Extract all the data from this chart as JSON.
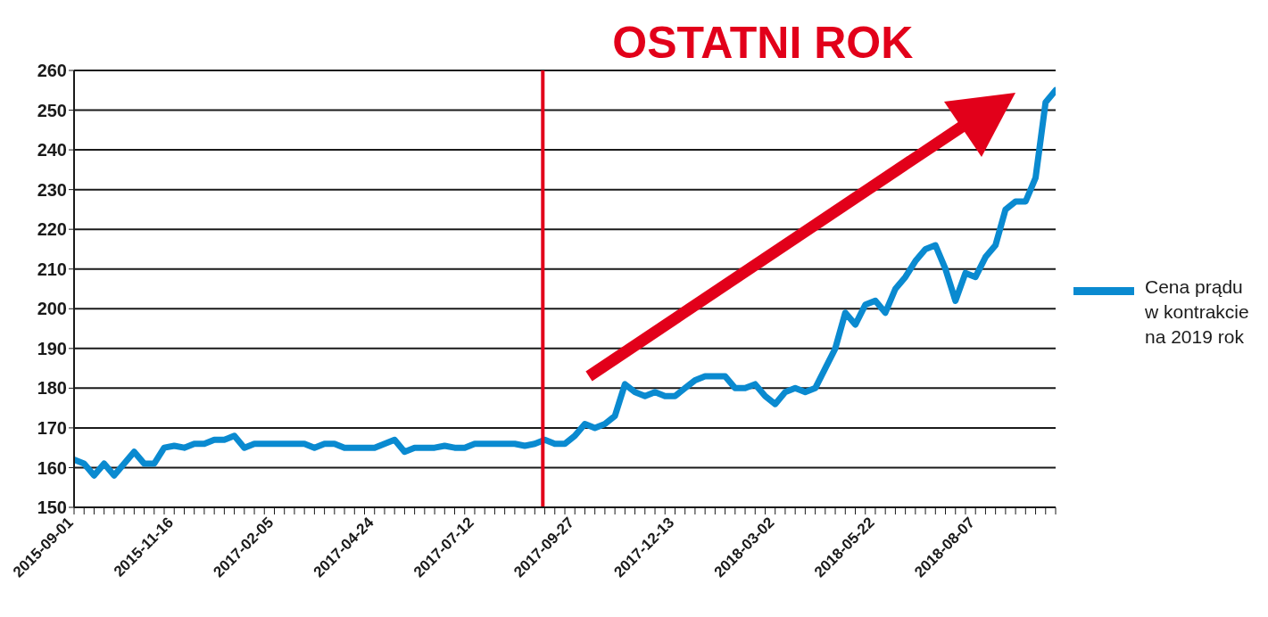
{
  "chart_data": {
    "type": "line",
    "categories": [
      "2015-09-01",
      null,
      null,
      null,
      null,
      null,
      null,
      null,
      null,
      null,
      "2015-11-16",
      null,
      null,
      null,
      null,
      null,
      null,
      null,
      null,
      null,
      "2017-02-05",
      null,
      null,
      null,
      null,
      null,
      null,
      null,
      null,
      null,
      "2017-04-24",
      null,
      null,
      null,
      null,
      null,
      null,
      null,
      null,
      null,
      "2017-07-12",
      null,
      null,
      null,
      null,
      null,
      null,
      null,
      null,
      null,
      "2017-09-27",
      null,
      null,
      null,
      null,
      null,
      null,
      null,
      null,
      null,
      "2017-12-13",
      null,
      null,
      null,
      null,
      null,
      null,
      null,
      null,
      null,
      "2018-03-02",
      null,
      null,
      null,
      null,
      null,
      null,
      null,
      null,
      null,
      "2018-05-22",
      null,
      null,
      null,
      null,
      null,
      null,
      null,
      null,
      null,
      "2018-08-07",
      null,
      null,
      null,
      null,
      null,
      null,
      null,
      null
    ],
    "series": [
      {
        "name": "Cena prądu w kontrakcie na 2019 rok",
        "color": "#0a8ad0",
        "values": [
          162,
          161,
          158,
          161,
          158,
          161,
          164,
          161,
          161,
          165,
          165.5,
          165,
          166,
          166,
          167,
          167,
          168,
          165,
          166,
          166,
          166,
          166,
          166,
          166,
          165,
          166,
          166,
          165,
          165,
          165,
          165,
          166,
          167,
          164,
          165,
          165,
          165,
          165.5,
          165,
          165,
          166,
          166,
          166,
          166,
          166,
          165.5,
          166,
          167,
          166,
          166,
          168,
          171,
          170,
          171,
          173,
          181,
          179,
          178,
          179,
          178,
          178,
          180,
          182,
          183,
          183,
          183,
          180,
          180,
          181,
          178,
          176,
          179,
          180,
          179,
          180,
          185,
          190,
          199,
          196,
          201,
          202,
          199,
          205,
          208,
          212,
          215,
          216,
          210,
          202,
          209,
          208,
          213,
          216,
          225,
          227,
          227,
          233,
          252,
          255
        ]
      }
    ],
    "ylim": [
      150,
      260
    ],
    "yticks": [
      150,
      160,
      170,
      180,
      190,
      200,
      210,
      220,
      230,
      240,
      250,
      260
    ],
    "grid": "y",
    "legend": "right",
    "marker": "none",
    "annotations": [
      "OSTATNI ROK"
    ]
  }
}
